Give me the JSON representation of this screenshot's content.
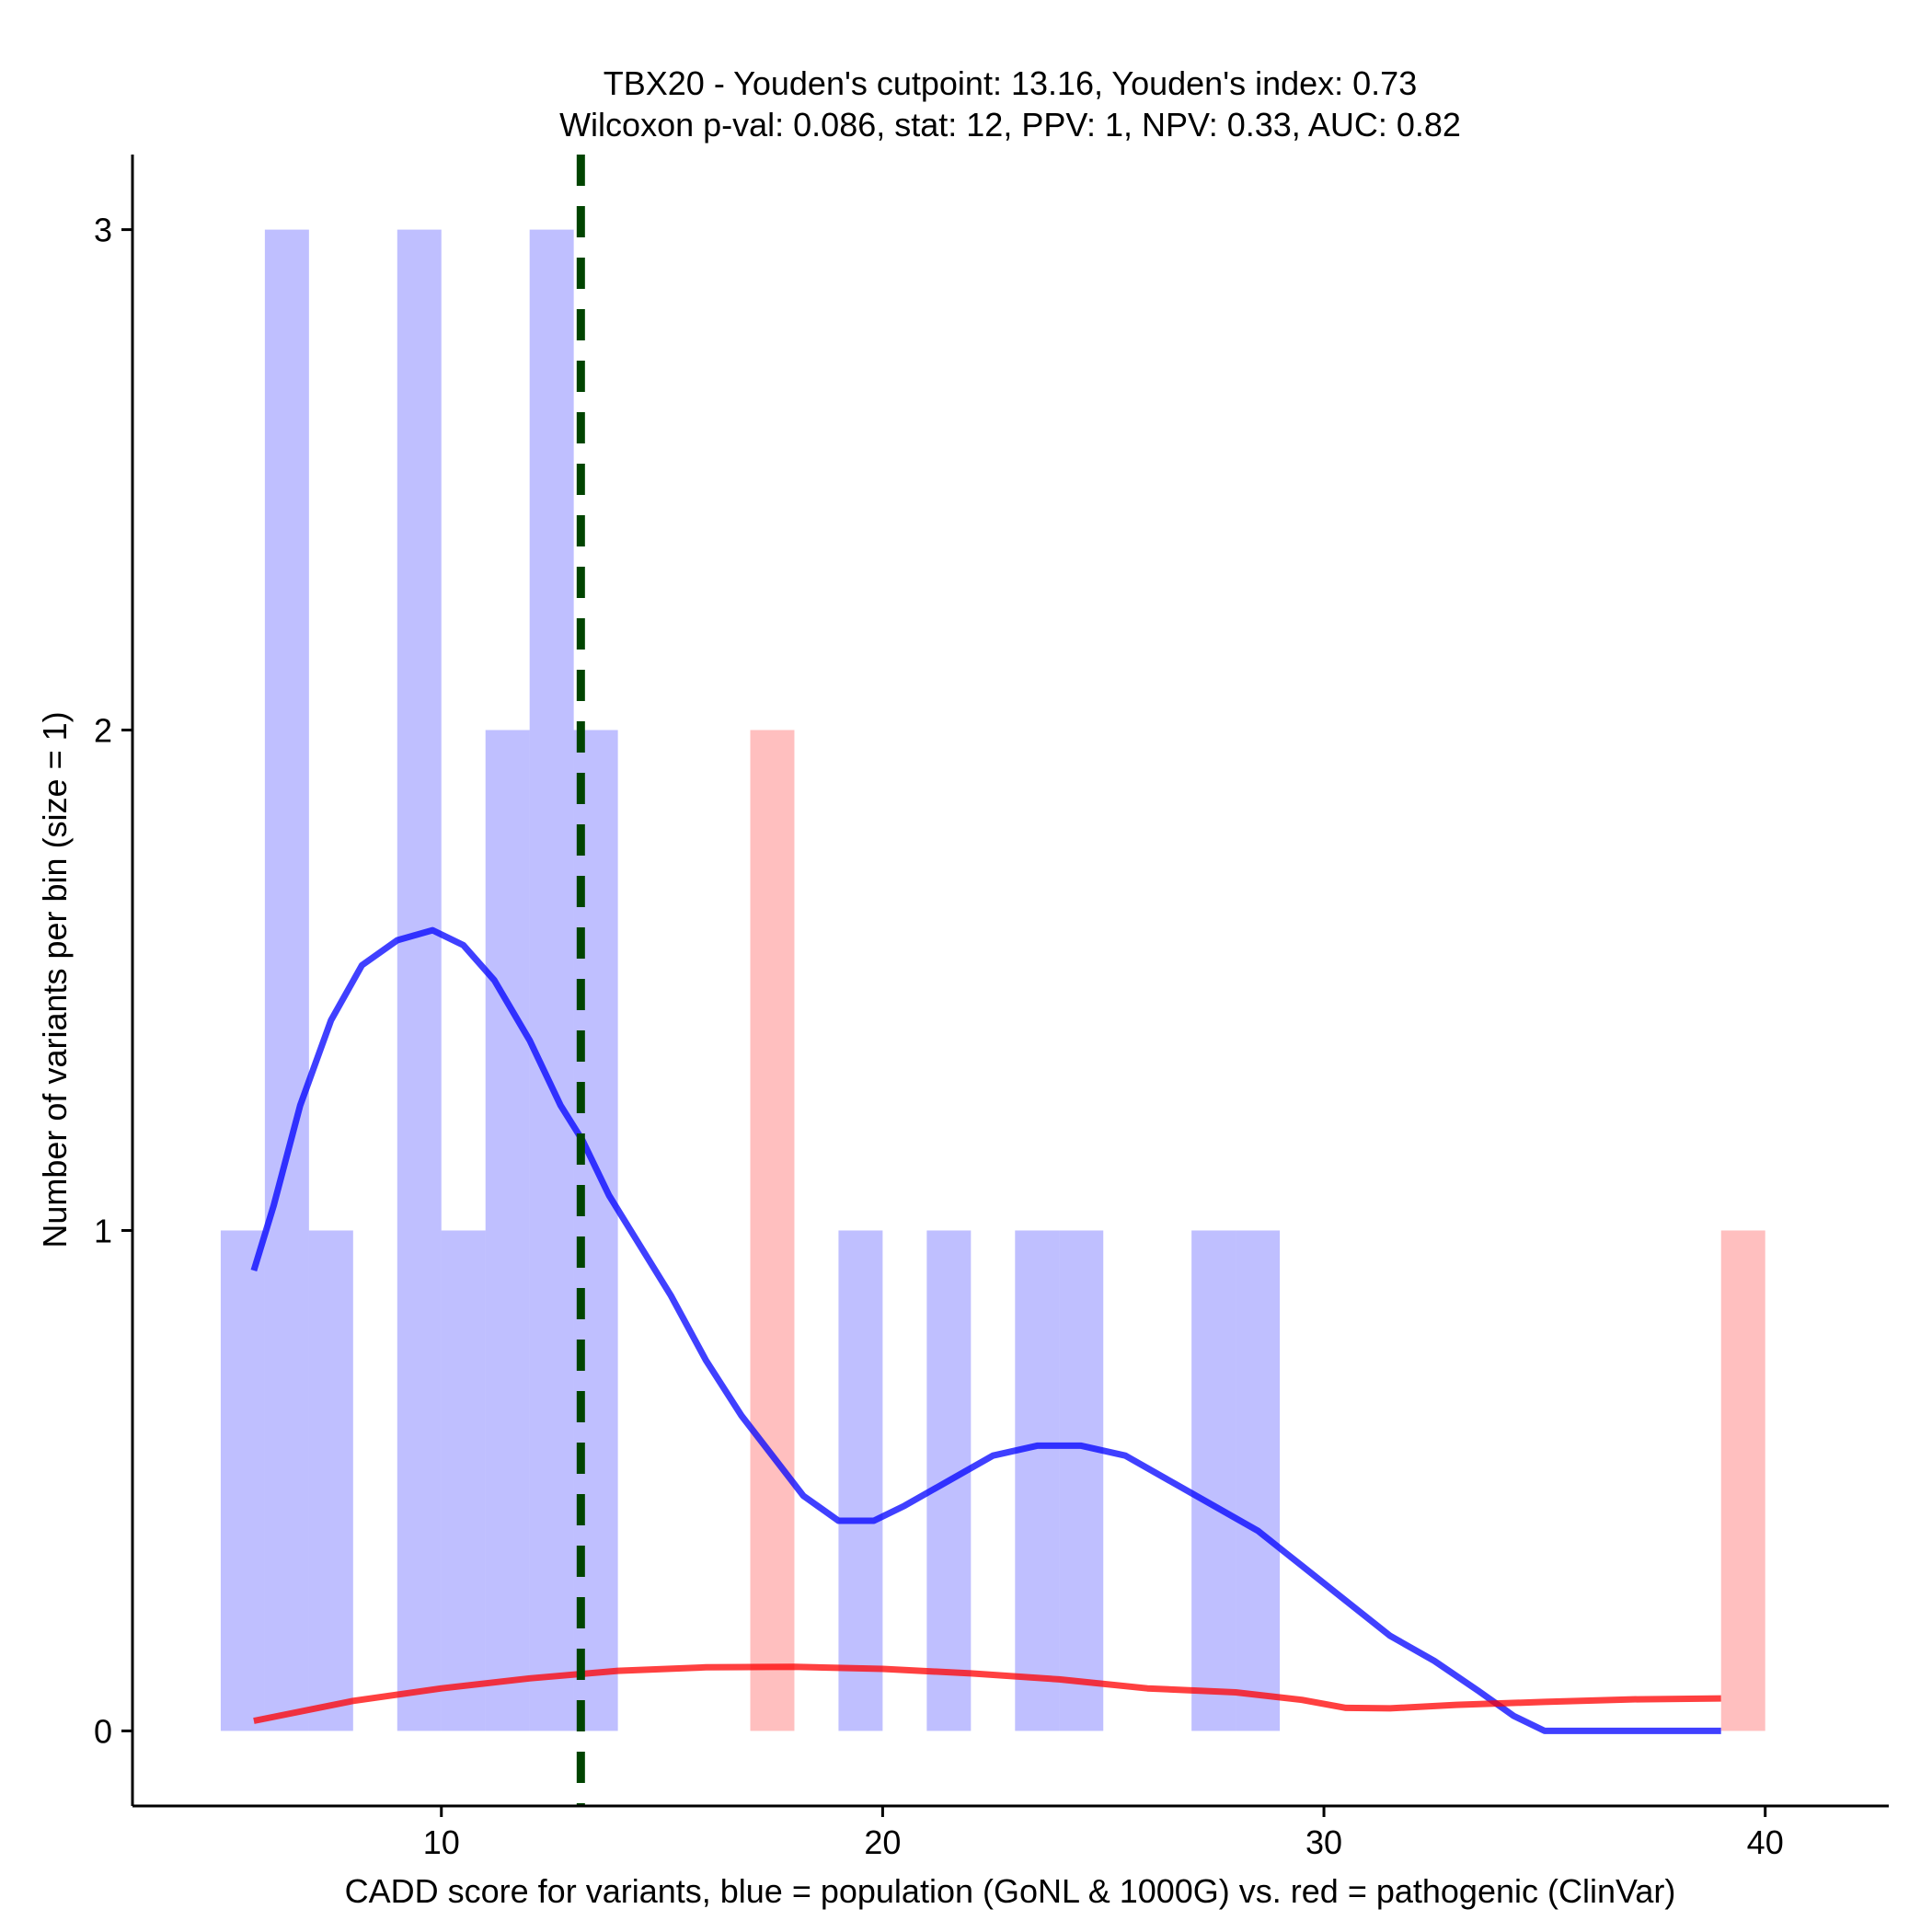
{
  "chart_data": {
    "type": "histogram+density",
    "title_line1": "TBX20 - Youden's cutpoint: 13.16, Youden's index: 0.73",
    "title_line2": "Wilcoxon p-val: 0.086, stat: 12, PPV: 1, NPV: 0.33, AUC: 0.82",
    "xlabel": "CADD score for variants, blue = population (GoNL & 1000G) vs. red = pathogenic (ClinVar)",
    "ylabel": "Number of variants per bin (size = 1)",
    "xlim": [
      3,
      42.8
    ],
    "ylim": [
      -0.15,
      3.15
    ],
    "x_ticks": [
      10,
      20,
      30,
      40
    ],
    "y_ticks": [
      0,
      1,
      2,
      3
    ],
    "bin_width": 1,
    "cutpoint": 13.16,
    "series": [
      {
        "name": "population (GoNL & 1000G)",
        "color": "#0000FF",
        "bins": [
          {
            "x0": 5,
            "count": 1
          },
          {
            "x0": 6,
            "count": 3
          },
          {
            "x0": 7,
            "count": 1
          },
          {
            "x0": 9,
            "count": 3
          },
          {
            "x0": 10,
            "count": 1
          },
          {
            "x0": 11,
            "count": 2
          },
          {
            "x0": 12,
            "count": 3
          },
          {
            "x0": 13,
            "count": 2
          },
          {
            "x0": 19,
            "count": 1
          },
          {
            "x0": 21,
            "count": 1
          },
          {
            "x0": 23,
            "count": 1
          },
          {
            "x0": 24,
            "count": 1
          },
          {
            "x0": 27,
            "count": 1
          },
          {
            "x0": 28,
            "count": 1
          }
        ],
        "density": [
          [
            5.75,
            0.92
          ],
          [
            6.2,
            1.05
          ],
          [
            6.8,
            1.25
          ],
          [
            7.5,
            1.42
          ],
          [
            8.2,
            1.53
          ],
          [
            9.0,
            1.58
          ],
          [
            9.8,
            1.6
          ],
          [
            10.5,
            1.57
          ],
          [
            11.2,
            1.5
          ],
          [
            12.0,
            1.38
          ],
          [
            12.7,
            1.25
          ],
          [
            13.2,
            1.18
          ],
          [
            13.8,
            1.07
          ],
          [
            14.5,
            0.97
          ],
          [
            15.2,
            0.87
          ],
          [
            16.0,
            0.74
          ],
          [
            16.8,
            0.63
          ],
          [
            17.5,
            0.55
          ],
          [
            18.2,
            0.47
          ],
          [
            19.0,
            0.42
          ],
          [
            19.8,
            0.42
          ],
          [
            20.5,
            0.45
          ],
          [
            21.5,
            0.5
          ],
          [
            22.5,
            0.55
          ],
          [
            23.5,
            0.57
          ],
          [
            24.5,
            0.57
          ],
          [
            25.5,
            0.55
          ],
          [
            26.5,
            0.5
          ],
          [
            27.5,
            0.45
          ],
          [
            28.5,
            0.4
          ],
          [
            29.5,
            0.33
          ],
          [
            30.5,
            0.26
          ],
          [
            31.5,
            0.19
          ],
          [
            32.5,
            0.14
          ],
          [
            33.5,
            0.08
          ],
          [
            34.3,
            0.03
          ],
          [
            35.0,
            0.0
          ],
          [
            36.0,
            0.0
          ],
          [
            38.0,
            0.0
          ],
          [
            39.0,
            0.0
          ]
        ]
      },
      {
        "name": "pathogenic (ClinVar)",
        "color": "#FF0000",
        "bins": [
          {
            "x0": 17,
            "count": 2
          },
          {
            "x0": 39,
            "count": 1
          }
        ],
        "density": [
          [
            5.75,
            0.02
          ],
          [
            8.0,
            0.06
          ],
          [
            10.0,
            0.085
          ],
          [
            12.0,
            0.105
          ],
          [
            14.0,
            0.12
          ],
          [
            16.0,
            0.127
          ],
          [
            18.0,
            0.128
          ],
          [
            20.0,
            0.124
          ],
          [
            22.0,
            0.115
          ],
          [
            24.0,
            0.103
          ],
          [
            26.0,
            0.085
          ],
          [
            28.0,
            0.077
          ],
          [
            29.5,
            0.062
          ],
          [
            30.5,
            0.046
          ],
          [
            31.5,
            0.045
          ],
          [
            33.0,
            0.052
          ],
          [
            35.0,
            0.058
          ],
          [
            37.0,
            0.063
          ],
          [
            39.0,
            0.065
          ]
        ]
      }
    ]
  }
}
